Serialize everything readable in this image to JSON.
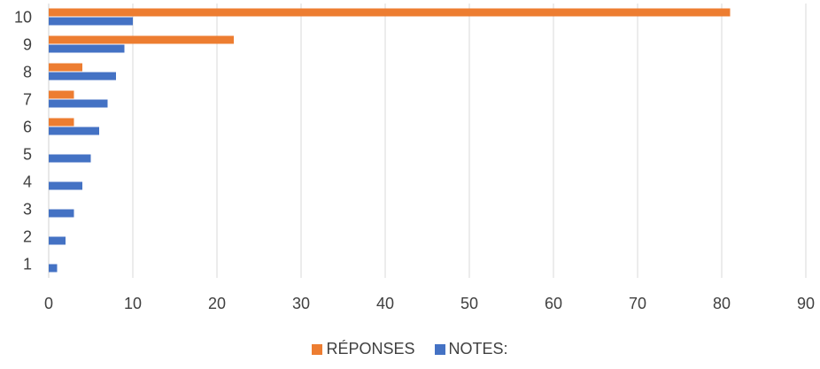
{
  "chart_data": {
    "type": "bar",
    "orientation": "horizontal",
    "categories": [
      "1",
      "2",
      "3",
      "4",
      "5",
      "6",
      "7",
      "8",
      "9",
      "10"
    ],
    "series": [
      {
        "name": "NOTES:",
        "color": "#4472C4",
        "values": [
          1,
          2,
          3,
          4,
          5,
          6,
          7,
          8,
          9,
          10
        ]
      },
      {
        "name": "RÉPONSES",
        "color": "#ED7D31",
        "values": [
          0,
          0,
          0,
          0,
          0,
          3,
          3,
          4,
          22,
          81
        ]
      }
    ],
    "xlim": [
      0,
      90
    ],
    "xticks": [
      "0",
      "10",
      "20",
      "30",
      "40",
      "50",
      "60",
      "70",
      "80",
      "90"
    ],
    "grid": true,
    "legend_position": "bottom",
    "legend": [
      {
        "name": "RÉPONSES",
        "color": "#ED7D31"
      },
      {
        "name": "NOTES:",
        "color": "#4472C4"
      }
    ]
  }
}
